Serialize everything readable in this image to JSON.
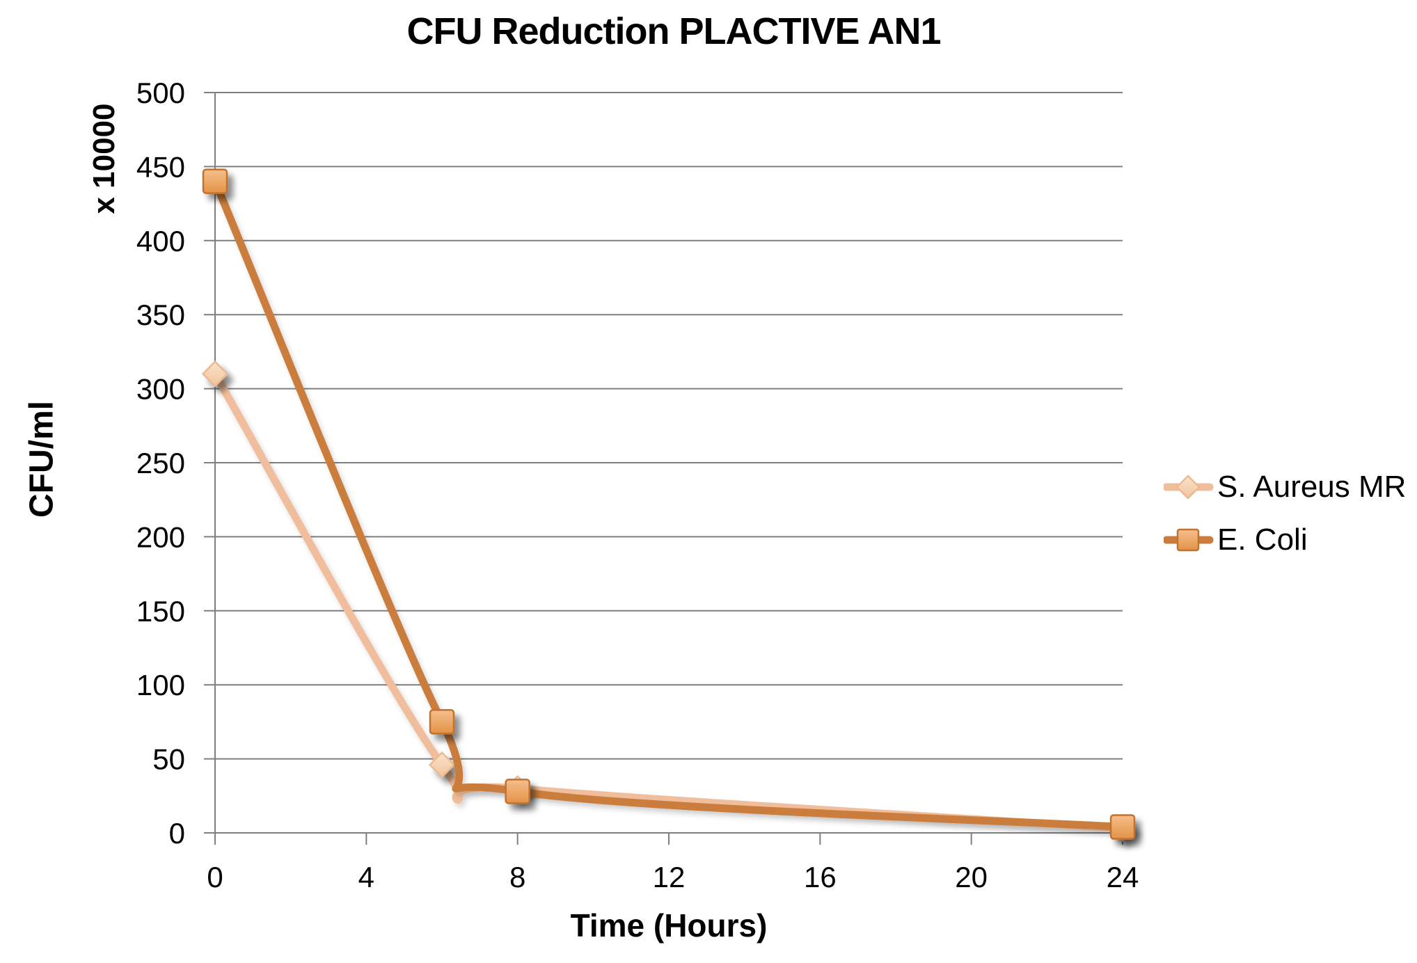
{
  "chart_data": {
    "type": "line",
    "title": "CFU Reduction PLACTIVE AN1",
    "xlabel": "Time (Hours)",
    "ylabel": "CFU/ml",
    "y_unit_note": "x 10000",
    "x": [
      0,
      6,
      8,
      24
    ],
    "series": [
      {
        "name": "S. Aureus MR",
        "marker": "diamond",
        "values": [
          310,
          46,
          30,
          3
        ],
        "line_color": "#F0BE9C",
        "marker_fill_light": "#FAE3CB",
        "marker_fill_dark": "#F1C49C",
        "marker_border": "#EDB990"
      },
      {
        "name": "E. Coli",
        "marker": "square",
        "values": [
          440,
          75,
          28,
          4
        ],
        "line_color": "#CB7D3D",
        "marker_fill_light": "#F6BE8C",
        "marker_fill_dark": "#E39346",
        "marker_border": "#C0722F"
      }
    ],
    "xticks": [
      0,
      4,
      8,
      12,
      16,
      20,
      24
    ],
    "yticks": [
      0,
      50,
      100,
      150,
      200,
      250,
      300,
      350,
      400,
      450,
      500
    ],
    "xlim": [
      0,
      24
    ],
    "ylim": [
      0,
      500
    ],
    "smooth_lines": true,
    "grid": "horizontal",
    "grid_color": "#7F7F7F",
    "text_color": "#000000",
    "background": "#FFFFFF",
    "legend_position": "right"
  }
}
